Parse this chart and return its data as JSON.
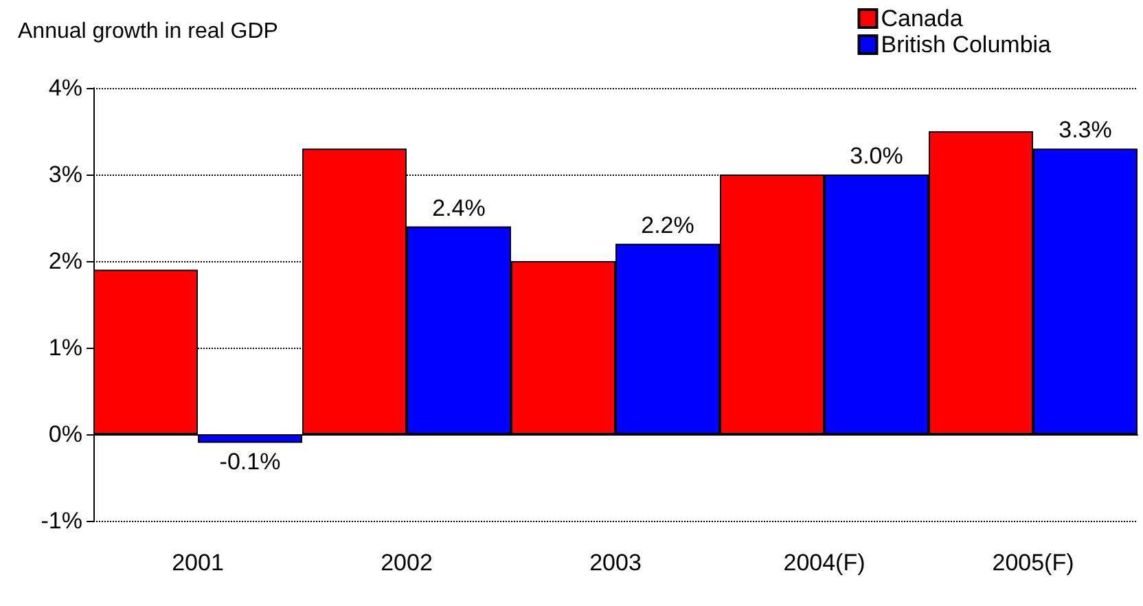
{
  "chart_data": {
    "type": "bar",
    "ylabel": "Annual growth in real GDP",
    "categories": [
      "2001",
      "2002",
      "2003",
      "2004(F)",
      "2005(F)"
    ],
    "series": [
      {
        "name": "Canada",
        "color": "#ff0000",
        "values": [
          1.9,
          3.3,
          2.0,
          3.0,
          3.5
        ]
      },
      {
        "name": "British Columbia",
        "color": "#0000ff",
        "values": [
          -0.1,
          2.4,
          2.2,
          3.0,
          3.3
        ],
        "value_labels": [
          "-0.1%",
          "2.4%",
          "2.2%",
          "3.0%",
          "3.3%"
        ]
      }
    ],
    "ylim": [
      -1,
      4
    ],
    "yticks": [
      {
        "value": -1,
        "label": "-1%"
      },
      {
        "value": 0,
        "label": "0%"
      },
      {
        "value": 1,
        "label": "1%"
      },
      {
        "value": 2,
        "label": "2%"
      },
      {
        "value": 3,
        "label": "3%"
      },
      {
        "value": 4,
        "label": "4%"
      }
    ],
    "grid": "y",
    "legend": "top right"
  }
}
